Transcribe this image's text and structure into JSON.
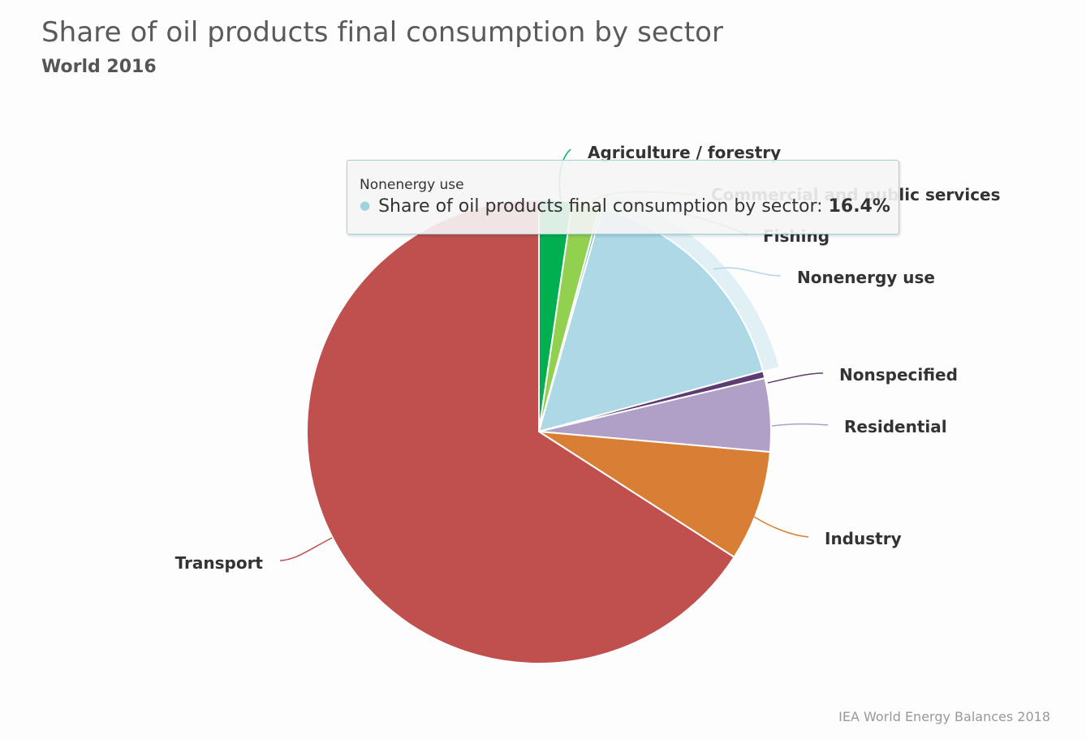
{
  "title": "Share of oil products final consumption by sector",
  "subtitle": "World 2016",
  "credits": "IEA World Energy Balances 2018",
  "tooltip": {
    "header": "Nonenergy use",
    "series_label": "Share of oil products final consumption by sector:",
    "value": "16.4%",
    "dot_color": "#9ed3df"
  },
  "chart_data": {
    "type": "pie",
    "series": [
      {
        "name": "Share of oil products final consumption by sector",
        "unit": "%",
        "points": [
          {
            "label": "Agriculture / forestry",
            "value": 2.3,
            "color": "#00b050"
          },
          {
            "label": "Commercial and public services",
            "value": 1.9,
            "color": "#92d050"
          },
          {
            "label": "Fishing",
            "value": 0.2,
            "color": "#5fb8a8"
          },
          {
            "label": "Nonenergy use",
            "value": 16.4,
            "color": "#add8e6",
            "hovered": true
          },
          {
            "label": "Nonspecified",
            "value": 0.5,
            "color": "#5e3c73"
          },
          {
            "label": "Residential",
            "value": 5.1,
            "color": "#b0a0c8"
          },
          {
            "label": "Industry",
            "value": 7.7,
            "color": "#d97f35"
          },
          {
            "label": "Transport",
            "value": 65.9,
            "color": "#bf504e"
          }
        ]
      }
    ]
  }
}
